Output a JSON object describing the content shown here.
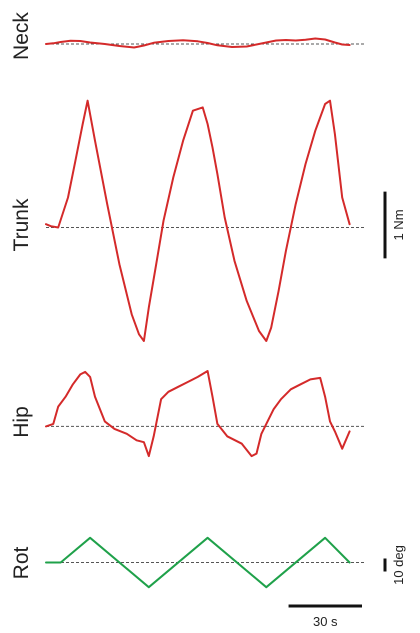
{
  "chart_data": {
    "type": "line",
    "title": "",
    "x_unit": "s",
    "x_range": [
      0,
      125
    ],
    "traces": [
      {
        "label": "Neck",
        "color": "#d42a2a",
        "y_unit": "Nm",
        "y_range": [
          -0.8,
          0.8
        ],
        "x": [
          0,
          3,
          6,
          10,
          14,
          18,
          24,
          30,
          36,
          40,
          44,
          50,
          56,
          62,
          66,
          70,
          76,
          82,
          88,
          94,
          98,
          102,
          106,
          110,
          114,
          118,
          121,
          124
        ],
        "y": [
          0,
          0.03,
          0.08,
          0.13,
          0.12,
          0.06,
          0.0,
          -0.08,
          -0.14,
          -0.06,
          0.05,
          0.12,
          0.15,
          0.11,
          0.04,
          -0.05,
          -0.12,
          -0.1,
          0.02,
          0.14,
          0.16,
          0.14,
          0.17,
          0.22,
          0.18,
          0.06,
          -0.02,
          -0.04
        ]
      },
      {
        "label": "Trunk",
        "color": "#d42a2a",
        "y_unit": "Nm",
        "y_range": [
          -1.7,
          2.0
        ],
        "x": [
          0,
          2,
          5,
          9,
          12,
          15,
          17,
          20,
          25,
          30,
          35,
          38,
          40,
          42,
          45,
          48,
          52,
          56,
          60,
          64,
          66,
          68,
          70,
          73,
          77,
          82,
          87,
          90,
          92,
          95,
          98,
          102,
          106,
          110,
          114,
          116,
          118,
          121,
          124
        ],
        "y": [
          0.05,
          0.02,
          0.0,
          0.45,
          1.0,
          1.55,
          1.9,
          1.3,
          0.35,
          -0.55,
          -1.3,
          -1.6,
          -1.7,
          -1.2,
          -0.55,
          0.1,
          0.75,
          1.3,
          1.75,
          1.8,
          1.55,
          1.2,
          0.8,
          0.15,
          -0.5,
          -1.1,
          -1.55,
          -1.7,
          -1.5,
          -0.95,
          -0.35,
          0.35,
          0.95,
          1.45,
          1.85,
          1.9,
          1.4,
          0.45,
          0.05
        ]
      },
      {
        "label": "Hip",
        "color": "#d42a2a",
        "y_unit": "Nm",
        "y_range": [
          -0.8,
          1.2
        ],
        "x": [
          0,
          3,
          5,
          8,
          11,
          14,
          16,
          18,
          20,
          24,
          28,
          33,
          37,
          40,
          42,
          44,
          47,
          50,
          54,
          58,
          62,
          66,
          68,
          70,
          74,
          80,
          84,
          86,
          88,
          90,
          93,
          96,
          100,
          104,
          108,
          112,
          114,
          116,
          118,
          121,
          124
        ],
        "y": [
          0.0,
          0.05,
          0.4,
          0.6,
          0.85,
          1.05,
          1.1,
          1.0,
          0.6,
          0.1,
          -0.05,
          -0.15,
          -0.28,
          -0.32,
          -0.6,
          -0.2,
          0.55,
          0.7,
          0.8,
          0.9,
          1.0,
          1.12,
          0.6,
          0.05,
          -0.2,
          -0.35,
          -0.6,
          -0.55,
          -0.15,
          0.05,
          0.35,
          0.55,
          0.75,
          0.85,
          0.95,
          0.98,
          0.6,
          0.1,
          -0.1,
          -0.45,
          -0.1
        ]
      },
      {
        "label": "Rot",
        "color": "#1fa14a",
        "y_unit": "deg",
        "y_range": [
          -25,
          25
        ],
        "x": [
          0,
          6,
          18,
          42,
          66,
          90,
          114,
          124
        ],
        "y": [
          0,
          0,
          19,
          -19,
          19,
          -19,
          19,
          0
        ]
      }
    ],
    "scale_bars": [
      {
        "label": "1 Nm",
        "value": 1,
        "unit": "Nm",
        "axis": "y",
        "applies_to": "Trunk"
      },
      {
        "label": "10 deg",
        "value": 10,
        "unit": "deg",
        "axis": "y",
        "applies_to": "Rot"
      },
      {
        "label": "30 s",
        "value": 30,
        "unit": "s",
        "axis": "x"
      }
    ],
    "grid": false,
    "legend": "none"
  }
}
